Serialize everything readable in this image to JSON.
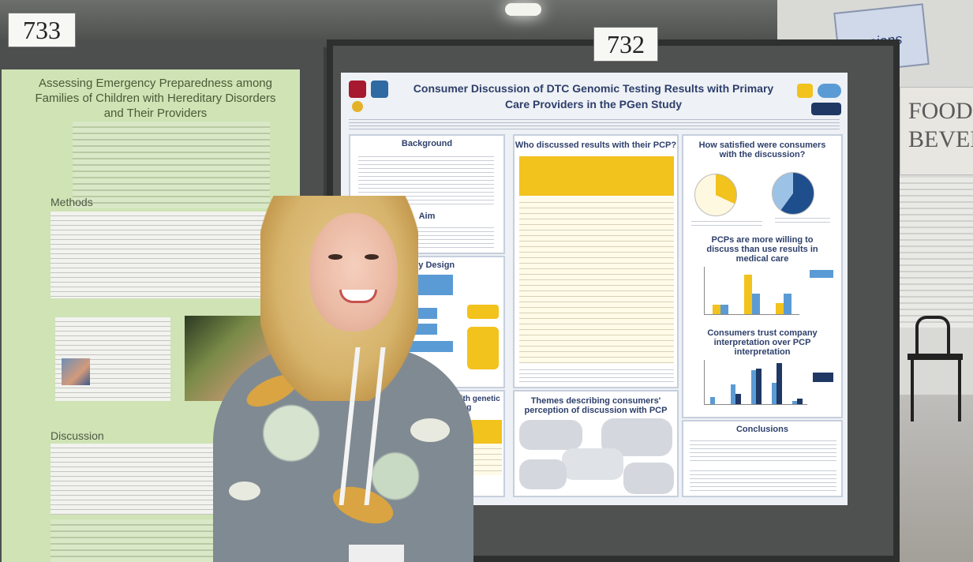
{
  "booth_numbers": {
    "left": "733",
    "right": "732"
  },
  "left_poster": {
    "title": "Assessing Emergency Preparedness among Families of Children with Hereditary Disorders and Their Providers",
    "methods_heading": "Methods",
    "discussion_heading": "Discussion"
  },
  "right_poster": {
    "title": "Consumer Discussion of DTC Genomic Testing Results with Primary Care Providers in the PGen Study",
    "background_heading": "Background",
    "aim_heading": "Aim",
    "study_design_heading": "Study Design",
    "who_discussed_heading": "Who discussed results with their PCP?",
    "how_satisfied_heading": "How satisfied were consumers with the discussion?",
    "pcp_willing_heading": "PCPs are more willing to discuss than use results in medical care",
    "consumers_trust_heading": "Consumers trust company interpretation over PCP interpretation",
    "themes_heading": "Themes describing consumers' perception of discussion with PCP",
    "conclusions_heading": "Conclusions",
    "results_discussed_heading": "of results with genetic testing"
  },
  "background_signs": {
    "food_sign": "FOOD BEVERA",
    "booth_sign": "essions"
  },
  "colors": {
    "accent_yellow": "#f2c21d",
    "accent_blue": "#5b9bd5",
    "dark_navy": "#1f3864",
    "poster_green": "#cfe3b5"
  },
  "chart_pcp_willing": {
    "type": "bar",
    "series": [
      {
        "values": [
          0.6,
          2.5,
          0.7
        ]
      },
      {
        "values": [
          0.6,
          1.3,
          1.3
        ]
      }
    ],
    "ylim": [
      0,
      3
    ]
  },
  "chart_trust": {
    "type": "bar",
    "series": [
      {
        "values": [
          0.4,
          1.1,
          1.9,
          1.2,
          0.2
        ]
      },
      {
        "values": [
          0.0,
          0.6,
          2.0,
          2.3,
          0.3
        ]
      }
    ],
    "ylim": [
      0,
      2.5
    ]
  }
}
